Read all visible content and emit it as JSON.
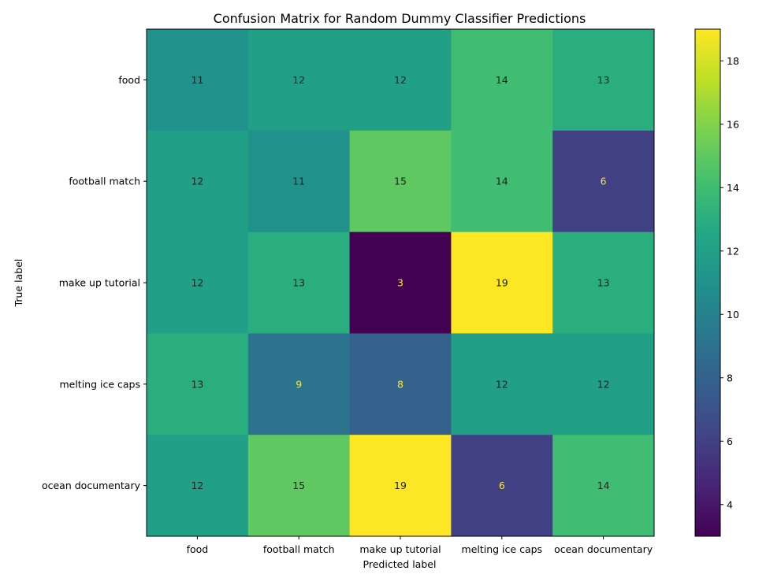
{
  "chart_data": {
    "type": "heatmap",
    "title": "Confusion Matrix for Random Dummy Classifier Predictions",
    "xlabel": "Predicted label",
    "ylabel": "True label",
    "x_categories": [
      "food",
      "football match",
      "make up tutorial",
      "melting ice caps",
      "ocean documentary"
    ],
    "y_categories": [
      "food",
      "football match",
      "make up tutorial",
      "melting ice caps",
      "ocean documentary"
    ],
    "matrix": [
      [
        11,
        12,
        12,
        14,
        13
      ],
      [
        12,
        11,
        15,
        14,
        6
      ],
      [
        12,
        13,
        3,
        19,
        13
      ],
      [
        13,
        9,
        8,
        12,
        12
      ],
      [
        12,
        15,
        19,
        6,
        14
      ]
    ],
    "colormap": "viridis",
    "vmin": 3,
    "vmax": 19,
    "colorbar_ticks": [
      4,
      6,
      8,
      10,
      12,
      14,
      16,
      18
    ],
    "text_color_dark": "#1f1f1f",
    "text_color_light": "#fde725",
    "grid": false
  }
}
